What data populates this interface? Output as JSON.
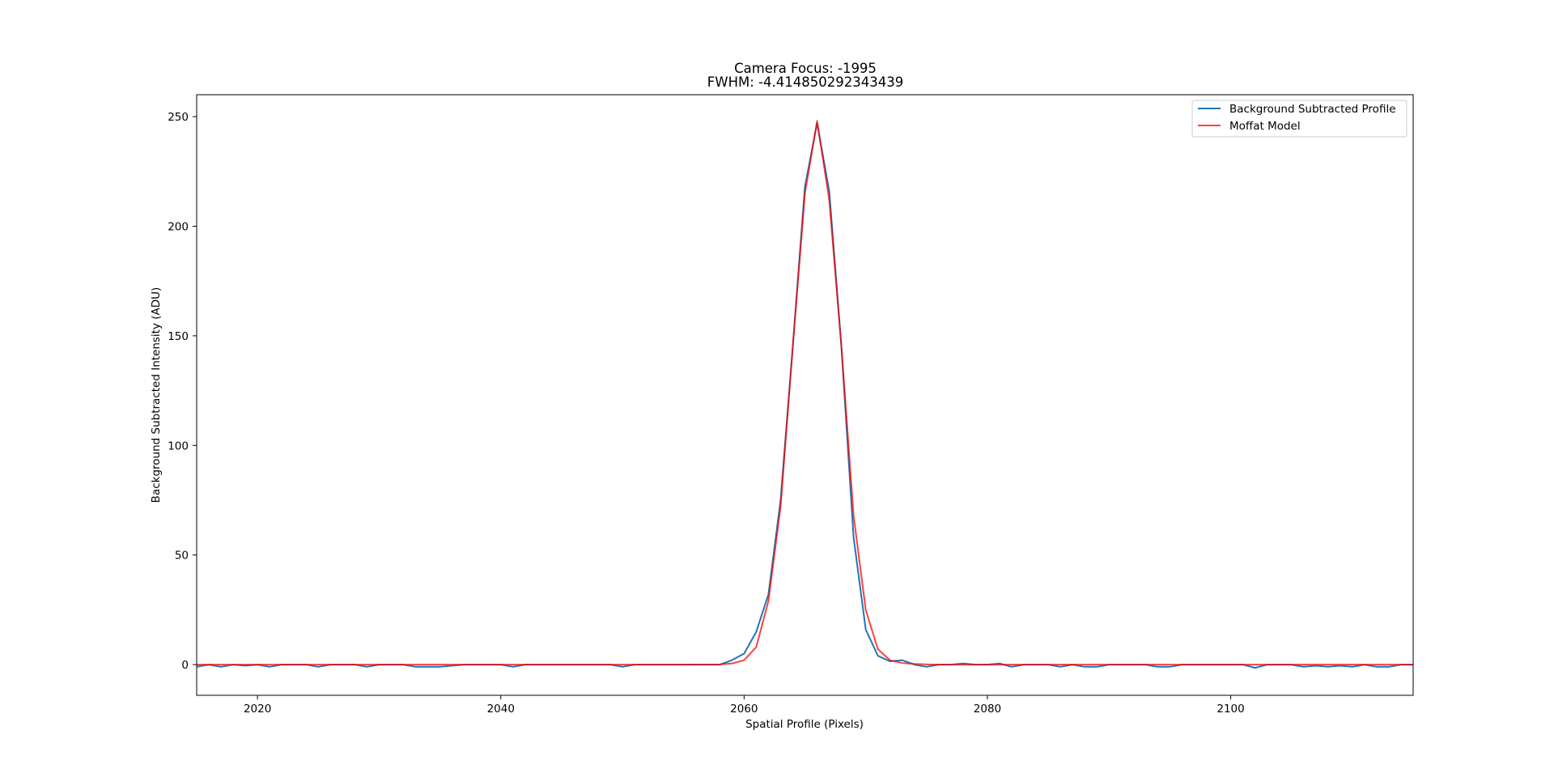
{
  "chart_data": {
    "type": "line",
    "title_line1": "Camera Focus: -1995",
    "title_line2": "FWHM: -4.414850292343439",
    "xlabel": "Spatial Profile (Pixels)",
    "ylabel": "Background Subtracted Intensity (ADU)",
    "xlim": [
      2015,
      2115
    ],
    "ylim": [
      -14,
      260
    ],
    "xticks": [
      2020,
      2040,
      2060,
      2080,
      2100
    ],
    "yticks": [
      0,
      50,
      100,
      150,
      200,
      250
    ],
    "legend": {
      "placement": "top-right",
      "entries": [
        "Background Subtracted Profile",
        "Moffat Model"
      ]
    },
    "grid": false,
    "series": [
      {
        "name": "Background Subtracted Profile",
        "color": "#1f77b4",
        "x": [
          2015,
          2016,
          2017,
          2018,
          2019,
          2020,
          2021,
          2022,
          2023,
          2024,
          2025,
          2026,
          2027,
          2028,
          2029,
          2030,
          2031,
          2032,
          2033,
          2034,
          2035,
          2036,
          2037,
          2038,
          2039,
          2040,
          2041,
          2042,
          2043,
          2044,
          2045,
          2046,
          2047,
          2048,
          2049,
          2050,
          2051,
          2052,
          2053,
          2054,
          2055,
          2056,
          2057,
          2058,
          2059,
          2060,
          2061,
          2062,
          2063,
          2064,
          2065,
          2066,
          2067,
          2068,
          2069,
          2070,
          2071,
          2072,
          2073,
          2074,
          2075,
          2076,
          2077,
          2078,
          2079,
          2080,
          2081,
          2082,
          2083,
          2084,
          2085,
          2086,
          2087,
          2088,
          2089,
          2090,
          2091,
          2092,
          2093,
          2094,
          2095,
          2096,
          2097,
          2098,
          2099,
          2100,
          2101,
          2102,
          2103,
          2104,
          2105,
          2106,
          2107,
          2108,
          2109,
          2110,
          2111,
          2112,
          2113,
          2114,
          2115
        ],
        "y": [
          -1,
          0,
          -1,
          0,
          -0.5,
          0,
          -1,
          0,
          0,
          0,
          -1,
          0,
          0,
          0,
          -1,
          0,
          0,
          0,
          -1,
          -1,
          -1,
          -0.5,
          0,
          0,
          0,
          0,
          -1,
          0,
          0,
          0,
          0,
          0,
          0,
          0,
          0,
          -1,
          0,
          0,
          0,
          0,
          0,
          0,
          0,
          0,
          2,
          5,
          15,
          32,
          75,
          145,
          218,
          247,
          216,
          145,
          58,
          16,
          4,
          1.5,
          2,
          0,
          -1,
          0,
          0,
          0.5,
          0,
          0,
          0.5,
          -1,
          0,
          0,
          0,
          -1,
          0,
          -1,
          -1,
          0,
          0,
          0,
          0,
          -1,
          -1,
          0,
          0,
          0,
          0,
          0,
          0,
          -1.5,
          0,
          0,
          0,
          -1,
          -0.5,
          -1,
          -0.5,
          -1,
          0,
          -1,
          -1,
          0,
          0
        ]
      },
      {
        "name": "Moffat Model",
        "color": "#ff0000",
        "x": [
          2015,
          2020,
          2025,
          2030,
          2035,
          2040,
          2045,
          2050,
          2055,
          2058,
          2059,
          2060,
          2061,
          2062,
          2063,
          2064,
          2065,
          2066,
          2067,
          2068,
          2069,
          2070,
          2071,
          2072,
          2073,
          2074,
          2075,
          2076,
          2080,
          2085,
          2090,
          2095,
          2100,
          2105,
          2110,
          2115
        ],
        "y": [
          0,
          0,
          0,
          0,
          0,
          0,
          0,
          0,
          0,
          0.1,
          0.5,
          2,
          8,
          29,
          72,
          145,
          215,
          248,
          212,
          145,
          68,
          25,
          7,
          2,
          0.7,
          0.3,
          0.1,
          0,
          0,
          0,
          0,
          0,
          0,
          0,
          0,
          0
        ]
      }
    ]
  }
}
